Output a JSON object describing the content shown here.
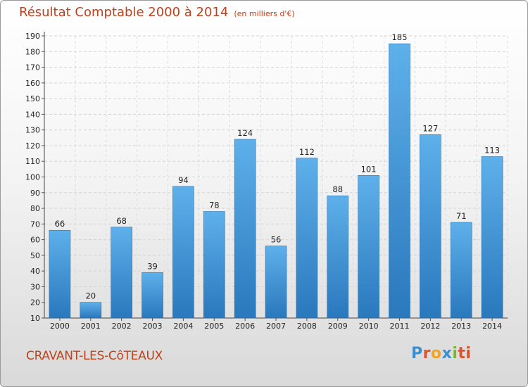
{
  "header": {
    "title": "Résultat Comptable 2000 à 2014",
    "unit": "(en milliers d'€)"
  },
  "footer": {
    "commune": "CRAVANT-LES-CôTEAUX",
    "logo_letters": [
      "P",
      "r",
      "o",
      "x",
      "i",
      "ti"
    ]
  },
  "chart_data": {
    "type": "bar",
    "title": "Résultat Comptable 2000 à 2014",
    "subtitle": "(en milliers d'€)",
    "xlabel": "",
    "ylabel": "",
    "categories": [
      "2000",
      "2001",
      "2002",
      "2003",
      "2004",
      "2005",
      "2006",
      "2007",
      "2008",
      "2009",
      "2010",
      "2011",
      "2012",
      "2013",
      "2014"
    ],
    "values": [
      66,
      20,
      68,
      39,
      94,
      78,
      124,
      56,
      112,
      88,
      101,
      185,
      127,
      71,
      113
    ],
    "ylim": [
      10,
      190
    ],
    "yticks": [
      10,
      20,
      30,
      40,
      50,
      60,
      70,
      80,
      90,
      100,
      110,
      120,
      130,
      140,
      150,
      160,
      170,
      180,
      190
    ],
    "grid": true,
    "bar_color": "#3d94d6"
  }
}
